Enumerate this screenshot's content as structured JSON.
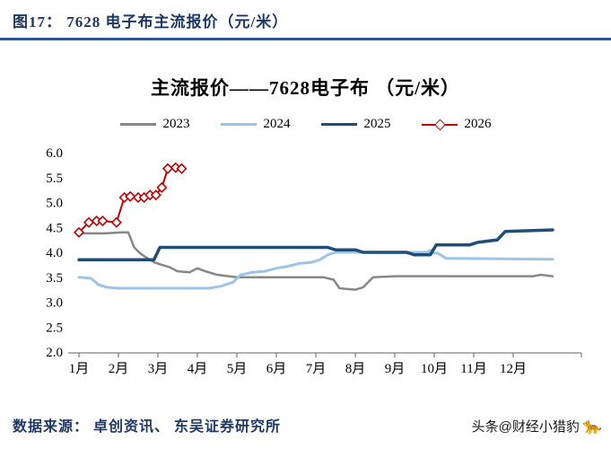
{
  "header": {
    "title": "图17：  7628 电子布主流报价（元/米）",
    "title_color": "#1F3864",
    "underline_color": "#2F5597"
  },
  "chart_data": {
    "type": "line",
    "title": "主流报价——7628电子布 （元/米）",
    "xlabel": "",
    "ylabel": "",
    "ylim": [
      2.0,
      6.0
    ],
    "ytick_step": 0.5,
    "yticks": [
      "6.0",
      "5.5",
      "5.0",
      "4.5",
      "4.0",
      "3.5",
      "3.0",
      "2.5",
      "2.0"
    ],
    "x_categories": [
      "1月",
      "2月",
      "3月",
      "4月",
      "5月",
      "6月",
      "7月",
      "8月",
      "9月",
      "10月",
      "11月",
      "12月"
    ],
    "grid": false,
    "legend_position": "top",
    "series": [
      {
        "name": "2023",
        "color": "#878787",
        "width": 2.5,
        "marker": "none",
        "x": [
          1.0,
          1.6,
          2.1,
          2.25,
          2.4,
          2.55,
          2.7,
          2.9,
          3.1,
          3.3,
          3.5,
          3.8,
          4.0,
          4.2,
          4.5,
          4.8,
          5.0,
          7.2,
          7.45,
          7.6,
          8.0,
          8.2,
          8.45,
          9.0,
          12.5,
          12.7,
          13.0
        ],
        "y": [
          4.38,
          4.38,
          4.4,
          4.4,
          4.1,
          3.98,
          3.9,
          3.8,
          3.75,
          3.7,
          3.62,
          3.6,
          3.68,
          3.62,
          3.55,
          3.52,
          3.5,
          3.5,
          3.45,
          3.28,
          3.25,
          3.3,
          3.5,
          3.52,
          3.52,
          3.55,
          3.52
        ]
      },
      {
        "name": "2024",
        "color": "#9DC3E6",
        "width": 3,
        "marker": "none",
        "x": [
          1.0,
          1.3,
          1.5,
          1.7,
          2.0,
          4.3,
          4.6,
          4.9,
          5.1,
          5.4,
          5.7,
          6.0,
          6.3,
          6.6,
          6.9,
          7.1,
          7.3,
          7.5,
          9.9,
          10.1,
          10.3,
          13.0
        ],
        "y": [
          3.5,
          3.48,
          3.35,
          3.3,
          3.28,
          3.28,
          3.32,
          3.4,
          3.55,
          3.6,
          3.62,
          3.68,
          3.72,
          3.78,
          3.8,
          3.85,
          3.95,
          4.0,
          4.0,
          3.98,
          3.88,
          3.86
        ],
        "markers": [
          {
            "x": 9.9,
            "y": 4.0
          }
        ]
      },
      {
        "name": "2025",
        "color": "#1F4E79",
        "width": 3.5,
        "marker": "none",
        "x": [
          1.0,
          2.9,
          3.05,
          7.3,
          7.5,
          8.0,
          8.2,
          9.3,
          9.5,
          9.9,
          10.05,
          10.9,
          11.1,
          11.6,
          11.8,
          13.0
        ],
        "y": [
          3.85,
          3.85,
          4.1,
          4.1,
          4.05,
          4.05,
          4.0,
          4.0,
          3.95,
          3.95,
          4.15,
          4.15,
          4.2,
          4.25,
          4.42,
          4.45
        ]
      },
      {
        "name": "2026",
        "color": "#C00000",
        "width": 2,
        "marker": "diamond",
        "x": [
          1.0,
          1.25,
          1.45,
          1.6,
          1.95,
          2.15,
          2.3,
          2.5,
          2.65,
          2.8,
          2.95,
          3.1,
          3.25,
          3.45,
          3.6
        ],
        "y": [
          4.4,
          4.6,
          4.63,
          4.63,
          4.6,
          5.1,
          5.12,
          5.1,
          5.1,
          5.15,
          5.15,
          5.3,
          5.68,
          5.7,
          5.68
        ]
      }
    ]
  },
  "footer": {
    "source": "数据来源： 卓创资讯、 东吴证券研究所",
    "source_color": "#1F3864"
  },
  "watermark": {
    "text": "头条@财经小猎豹",
    "icon": "leopard-icon",
    "icon_glyph": "🐆"
  }
}
